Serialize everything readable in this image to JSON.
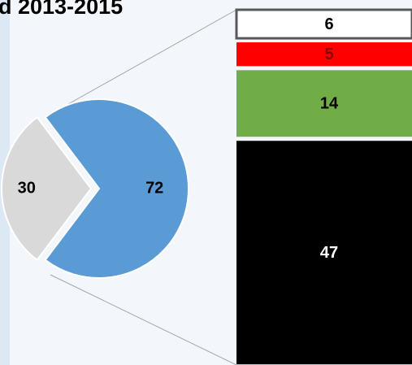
{
  "chart_data": [
    {
      "type": "pie",
      "title": "d 2013-2015",
      "values": [
        30,
        72
      ],
      "colors": [
        "#d9d9d9",
        "#5b9bd5"
      ]
    },
    {
      "type": "stacked-bar",
      "values": [
        6,
        5,
        14,
        47
      ],
      "colors": [
        "#ffffff",
        "#ff0000",
        "#70ad47",
        "#000000"
      ],
      "label_colors": [
        "#000000",
        "#8b0000",
        "#000000",
        "#ffffff"
      ]
    }
  ]
}
